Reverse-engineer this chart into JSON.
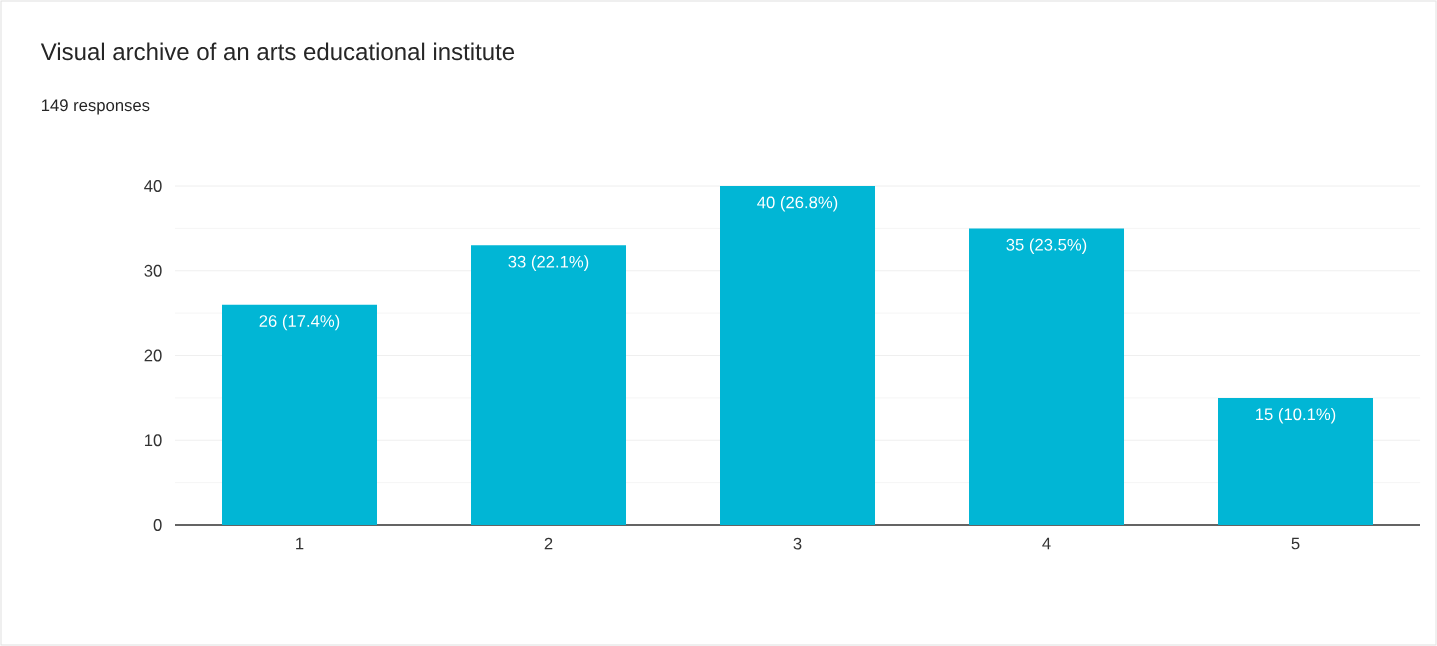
{
  "chart_data": {
    "type": "bar",
    "title": "Visual archive of an arts educational institute",
    "subtitle": "149 responses",
    "categories": [
      "1",
      "2",
      "3",
      "4",
      "5"
    ],
    "values": [
      26,
      33,
      40,
      35,
      15
    ],
    "value_labels": [
      "26 (17.4%)",
      "33 (22.1%)",
      "40 (26.8%)",
      "35 (23.5%)",
      "15 (10.1%)"
    ],
    "color": "#01b6d5",
    "ylim": [
      0,
      40
    ],
    "yticks": [
      0,
      10,
      20,
      30,
      40
    ],
    "grid": "y"
  }
}
